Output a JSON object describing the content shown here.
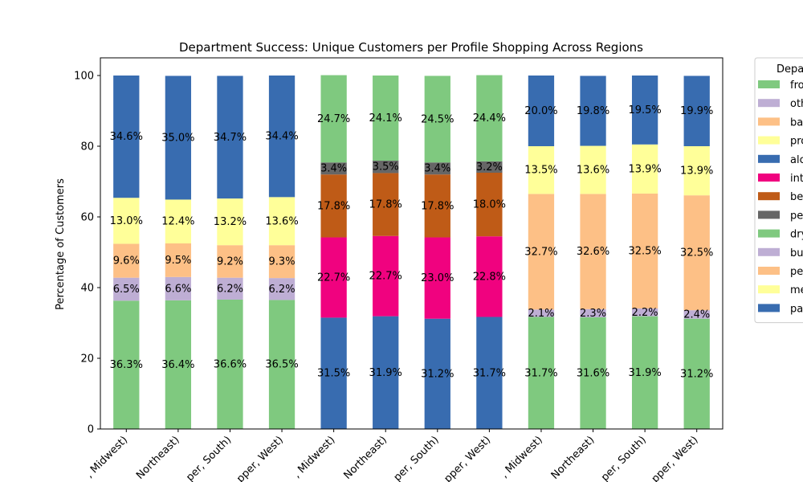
{
  "chart_data": {
    "type": "bar",
    "stacked": true,
    "title": "Department Success: Unique Customers per Profile Shopping Across Regions",
    "ylabel": "Percentage of Customers",
    "xlabel": "",
    "ylim": [
      0,
      105
    ],
    "yticks": [
      0,
      20,
      40,
      60,
      80,
      100
    ],
    "grid": false,
    "categories": [
      ", Midwest)",
      "Northeast)",
      "per, South)",
      "pper, West)",
      ", Midwest)",
      "Northeast)",
      "per, South)",
      "pper, West)",
      ", Midwest)",
      "Northeast)",
      "per, South)",
      "pper, West)"
    ],
    "legend": {
      "title": "Depa",
      "placement": "outside-right",
      "entries": [
        {
          "label": "fro",
          "color": "#7fc97f"
        },
        {
          "label": "oth",
          "color": "#beaed4"
        },
        {
          "label": "ba",
          "color": "#fdc086"
        },
        {
          "label": "pro",
          "color": "#ffff99"
        },
        {
          "label": "alc",
          "color": "#386cb0"
        },
        {
          "label": "int",
          "color": "#f0027f"
        },
        {
          "label": "be",
          "color": "#bf5b17"
        },
        {
          "label": "pe",
          "color": "#666666"
        },
        {
          "label": "dry",
          "color": "#7fc97f"
        },
        {
          "label": "bu",
          "color": "#beaed4"
        },
        {
          "label": "pe",
          "color": "#fdc086"
        },
        {
          "label": "me",
          "color": "#ffff99"
        },
        {
          "label": "pa",
          "color": "#386cb0"
        }
      ]
    },
    "segment_colors": [
      "#7fc97f",
      "#beaed4",
      "#fdc086",
      "#ffff99",
      "#386cb0",
      "#f0027f",
      "#bf5b17",
      "#666666",
      "#7fc97f",
      "#beaed4",
      "#fdc086",
      "#ffff99",
      "#386cb0"
    ],
    "series_values": [
      [
        36.3,
        36.4,
        36.6,
        36.5,
        0,
        0,
        0,
        0,
        0,
        0,
        0,
        0
      ],
      [
        6.5,
        6.6,
        6.2,
        6.2,
        0,
        0,
        0,
        0,
        0,
        0,
        0,
        0
      ],
      [
        9.6,
        9.5,
        9.2,
        9.3,
        0,
        0,
        0,
        0,
        0,
        0,
        0,
        0
      ],
      [
        13.0,
        12.4,
        13.2,
        13.6,
        0,
        0,
        0,
        0,
        0,
        0,
        0,
        0
      ],
      [
        34.6,
        35.0,
        34.7,
        34.4,
        0,
        0,
        0,
        0,
        0,
        0,
        0,
        0
      ],
      [
        0,
        0,
        0,
        0,
        22.7,
        22.7,
        23.0,
        22.8,
        0,
        0,
        0,
        0
      ],
      [
        0,
        0,
        0,
        0,
        17.8,
        17.8,
        17.8,
        18.0,
        0,
        0,
        0,
        0
      ],
      [
        0,
        0,
        0,
        0,
        3.4,
        3.5,
        3.4,
        3.2,
        0,
        0,
        0,
        0
      ],
      [
        0,
        0,
        0,
        0,
        24.7,
        24.1,
        24.5,
        24.4,
        0,
        0,
        0,
        0
      ],
      [
        0,
        0,
        0,
        0,
        0,
        0,
        0,
        0,
        2.1,
        2.3,
        2.2,
        2.4
      ],
      [
        0,
        0,
        0,
        0,
        0,
        0,
        0,
        0,
        32.7,
        32.6,
        32.5,
        32.5
      ],
      [
        0,
        0,
        0,
        0,
        0,
        0,
        0,
        0,
        13.5,
        13.6,
        13.9,
        13.9
      ],
      [
        0,
        0,
        0,
        0,
        0,
        0,
        0,
        0,
        20.0,
        19.8,
        19.5,
        19.9
      ]
    ],
    "base_values": [
      [
        0,
        0,
        0,
        0,
        31.5,
        31.9,
        31.2,
        31.7,
        31.7,
        31.6,
        31.9,
        31.2
      ]
    ],
    "base_colors": [
      "#386cb0",
      "#386cb0",
      "#386cb0",
      "#386cb0",
      "#386cb0",
      "#386cb0",
      "#386cb0",
      "#386cb0",
      "#7fc97f",
      "#7fc97f",
      "#7fc97f",
      "#7fc97f"
    ],
    "base_labels": [
      "",
      "",
      "",
      "",
      "31.5%",
      "31.9%",
      "31.2%",
      "31.7%",
      "31.7%",
      "31.6%",
      "31.9%",
      "31.2%"
    ]
  }
}
